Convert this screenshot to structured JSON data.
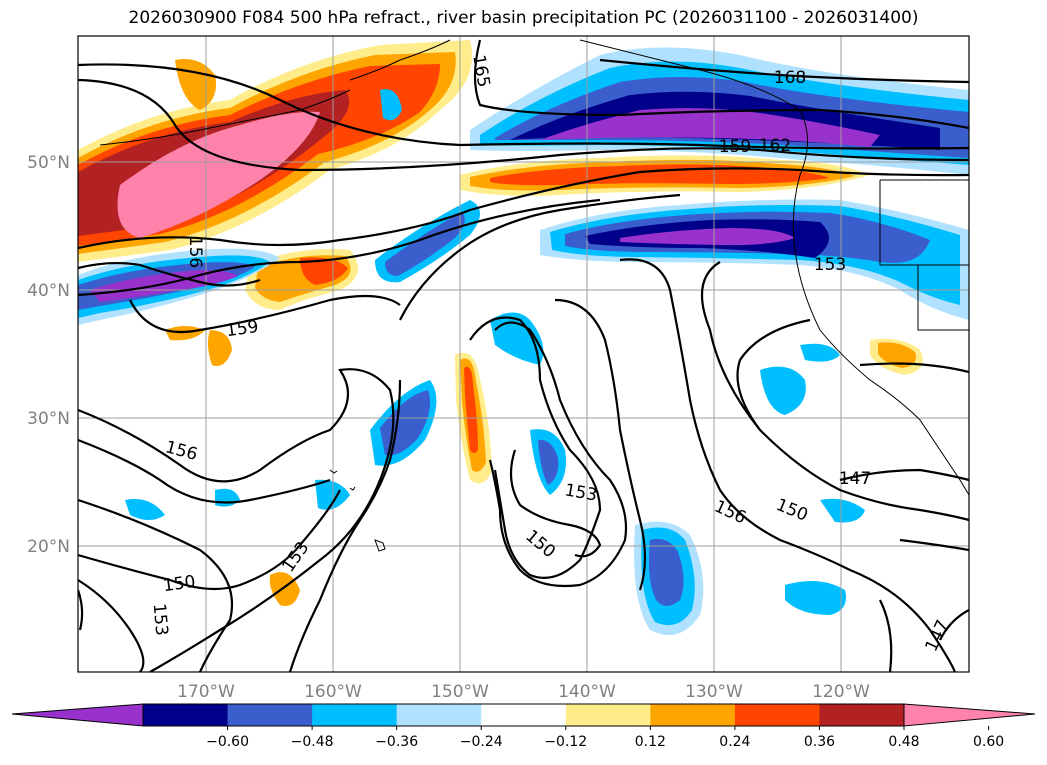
{
  "title": "2026030900 F084 500 hPa refract., river basin precipitation PC (2026031100 - 2026031400)",
  "lat_labels": [
    "50°N",
    "40°N",
    "30°N",
    "20°N"
  ],
  "lon_labels": [
    "170°W",
    "160°W",
    "150°W",
    "140°W",
    "130°W",
    "120°W"
  ],
  "colorbar": {
    "ticks": [
      "−0.60",
      "−0.48",
      "−0.36",
      "−0.24",
      "−0.12",
      "0.12",
      "0.24",
      "0.36",
      "0.48",
      "0.60"
    ],
    "colors": [
      "#9932cc",
      "#00008b",
      "#3a5fcd",
      "#00bfff",
      "#b0e2ff",
      "#ffffff",
      "#ffec8b",
      "#ffa500",
      "#ff4500",
      "#b22222",
      "#ff82ab"
    ]
  },
  "contour_labels": {
    "c168": "168",
    "c165": "165",
    "c162": "162",
    "c159a": "159",
    "c159b": "159",
    "c156a": "156",
    "c156b": "156",
    "c156c": "156",
    "c153a": "153",
    "c153b": "153",
    "c153c": "153",
    "c153d": "153",
    "c150a": "150",
    "c150b": "150",
    "c150c": "150",
    "c147a": "147",
    "c147b": "147"
  }
}
